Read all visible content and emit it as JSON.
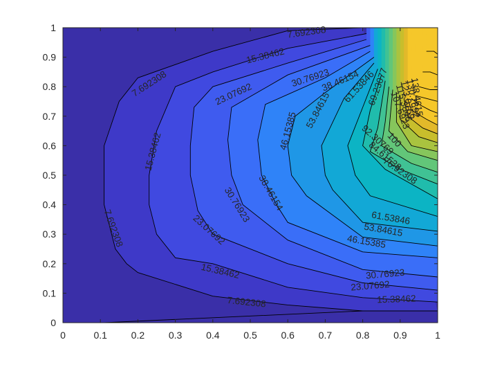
{
  "chart_data": {
    "type": "contourf",
    "title": "",
    "xlabel": "",
    "ylabel": "",
    "xlim": [
      0,
      1
    ],
    "ylim": [
      0,
      1
    ],
    "x_ticks": [
      "0",
      "0.1",
      "0.2",
      "0.3",
      "0.4",
      "0.5",
      "0.6",
      "0.7",
      "0.8",
      "0.9",
      "1"
    ],
    "y_ticks": [
      "0",
      "0.1",
      "0.2",
      "0.3",
      "0.4",
      "0.5",
      "0.6",
      "0.7",
      "0.8",
      "0.9",
      "1"
    ],
    "colormap": "parula",
    "grid": false,
    "level_step": 7.692308,
    "max_value_approx": 170,
    "fill_colors": [
      "#3a2fa8",
      "#3e39c8",
      "#4049e0",
      "#3f5bef",
      "#3a6ef8",
      "#2f83f8",
      "#1f97e6",
      "#12a8d6",
      "#0cb4c4",
      "#20bcac",
      "#40c294",
      "#62c679",
      "#86c65c",
      "#a9c33f",
      "#c8be2c",
      "#e2b92a",
      "#f5c72a"
    ],
    "level_lines": [
      {
        "level": "7.692308",
        "points": [
          [
            0.11,
            0
          ],
          [
            0.8,
            0.04
          ],
          [
            1,
            0.04
          ],
          [
            1,
            0
          ],
          [
            0.8,
            1
          ],
          [
            0.6,
            0.99
          ],
          [
            0.4,
            0.92
          ],
          [
            0.2,
            0.83
          ],
          [
            0.15,
            0.75
          ],
          [
            0.11,
            0.6
          ],
          [
            0.11,
            0.4
          ],
          [
            0.14,
            0.25
          ],
          [
            0.17,
            0.2
          ],
          [
            0.2,
            0.17
          ],
          [
            0.4,
            0.09
          ],
          [
            0.6,
            0.06
          ],
          [
            0.8,
            0.04
          ],
          [
            1,
            0.04
          ]
        ]
      },
      {
        "level": "15.38462",
        "points": [
          [
            0.81,
            0.98
          ],
          [
            0.6,
            0.93
          ],
          [
            0.4,
            0.85
          ],
          [
            0.3,
            0.8
          ],
          [
            0.25,
            0.65
          ],
          [
            0.23,
            0.5
          ],
          [
            0.23,
            0.4
          ],
          [
            0.25,
            0.3
          ],
          [
            0.3,
            0.22
          ],
          [
            0.4,
            0.2
          ],
          [
            0.6,
            0.12
          ],
          [
            0.8,
            0.085
          ],
          [
            1,
            0.07
          ]
        ]
      },
      {
        "level": "23.07692",
        "points": [
          [
            0.81,
            0.96
          ],
          [
            0.6,
            0.88
          ],
          [
            0.4,
            0.8
          ],
          [
            0.35,
            0.73
          ],
          [
            0.34,
            0.6
          ],
          [
            0.34,
            0.5
          ],
          [
            0.36,
            0.38
          ],
          [
            0.4,
            0.3
          ],
          [
            0.6,
            0.2
          ],
          [
            0.8,
            0.135
          ],
          [
            1,
            0.11
          ]
        ]
      },
      {
        "level": "30.76923",
        "points": [
          [
            0.82,
            0.94
          ],
          [
            0.6,
            0.84
          ],
          [
            0.45,
            0.73
          ],
          [
            0.44,
            0.62
          ],
          [
            0.45,
            0.5
          ],
          [
            0.48,
            0.4
          ],
          [
            0.6,
            0.28
          ],
          [
            0.8,
            0.18
          ],
          [
            1,
            0.155
          ]
        ]
      },
      {
        "level": "38.46154",
        "points": [
          [
            0.82,
            0.92
          ],
          [
            0.7,
            0.83
          ],
          [
            0.54,
            0.74
          ],
          [
            0.52,
            0.62
          ],
          [
            0.53,
            0.5
          ],
          [
            0.57,
            0.4
          ],
          [
            0.6,
            0.34
          ],
          [
            0.8,
            0.24
          ],
          [
            1,
            0.22
          ]
        ]
      },
      {
        "level": "46.15385",
        "points": [
          [
            0.83,
            0.9
          ],
          [
            0.7,
            0.78
          ],
          [
            0.62,
            0.7
          ],
          [
            0.6,
            0.6
          ],
          [
            0.61,
            0.5
          ],
          [
            0.65,
            0.43
          ],
          [
            0.8,
            0.29
          ],
          [
            1,
            0.26
          ]
        ]
      },
      {
        "level": "53.84615",
        "points": [
          [
            0.83,
            0.88
          ],
          [
            0.75,
            0.76
          ],
          [
            0.69,
            0.6
          ],
          [
            0.7,
            0.5
          ],
          [
            0.72,
            0.45
          ],
          [
            0.8,
            0.34
          ],
          [
            1,
            0.31
          ]
        ]
      },
      {
        "level": "61.53846",
        "points": [
          [
            0.84,
            0.86
          ],
          [
            0.8,
            0.73
          ],
          [
            0.76,
            0.6
          ],
          [
            0.78,
            0.5
          ],
          [
            0.82,
            0.43
          ],
          [
            1,
            0.36
          ]
        ]
      },
      {
        "level": "69.23077",
        "points": [
          [
            0.85,
            0.84
          ],
          [
            0.82,
            0.72
          ],
          [
            0.8,
            0.6
          ],
          [
            0.86,
            0.52
          ],
          [
            1,
            0.42
          ]
        ]
      },
      {
        "level": "76.92308",
        "points": [
          [
            0.86,
            0.82
          ],
          [
            0.84,
            0.66
          ],
          [
            0.82,
            0.58
          ],
          [
            0.9,
            0.52
          ],
          [
            1,
            0.47
          ]
        ]
      },
      {
        "level": "84.61538",
        "points": [
          [
            0.87,
            0.8
          ],
          [
            0.86,
            0.68
          ],
          [
            0.85,
            0.6
          ],
          [
            0.93,
            0.54
          ],
          [
            1,
            0.51
          ]
        ]
      },
      {
        "level": "92.30769",
        "points": [
          [
            0.88,
            0.79
          ],
          [
            0.87,
            0.65
          ],
          [
            0.92,
            0.58
          ],
          [
            1,
            0.55
          ]
        ]
      },
      {
        "level": "100",
        "points": [
          [
            0.89,
            0.78
          ],
          [
            0.89,
            0.68
          ],
          [
            0.93,
            0.6
          ],
          [
            1,
            0.58
          ]
        ]
      },
      {
        "level": "107.6923",
        "points": [
          [
            0.9,
            0.77
          ],
          [
            0.9,
            0.69
          ],
          [
            0.95,
            0.63
          ],
          [
            1,
            0.61
          ]
        ]
      },
      {
        "level": "115.3846",
        "points": [
          [
            0.91,
            0.76
          ],
          [
            0.92,
            0.7
          ],
          [
            0.96,
            0.66
          ],
          [
            1,
            0.64
          ]
        ]
      },
      {
        "level": "123.0769",
        "points": [
          [
            0.92,
            0.76
          ],
          [
            0.93,
            0.72
          ],
          [
            0.97,
            0.69
          ],
          [
            1,
            0.67
          ]
        ]
      },
      {
        "level": "130.7692",
        "points": [
          [
            0.93,
            0.76
          ],
          [
            0.95,
            0.74
          ],
          [
            0.98,
            0.72
          ],
          [
            1,
            0.71
          ]
        ]
      },
      {
        "level": "138.4615",
        "points": [
          [
            0.94,
            0.77
          ],
          [
            0.97,
            0.76
          ],
          [
            1,
            0.75
          ]
        ]
      },
      {
        "level": "146.1538",
        "points": [
          [
            0.95,
            0.8
          ],
          [
            0.98,
            0.79
          ],
          [
            1,
            0.79
          ]
        ]
      },
      {
        "level": "153.8462",
        "points": [
          [
            0.96,
            0.85
          ],
          [
            0.98,
            0.85
          ],
          [
            1,
            0.84
          ]
        ]
      },
      {
        "level": "161.5385",
        "points": [
          [
            0.97,
            0.92
          ],
          [
            0.99,
            0.92
          ],
          [
            1,
            0.91
          ]
        ]
      }
    ],
    "contour_labels": [
      {
        "text": "7.692308",
        "x": 0.65,
        "y": 0.985,
        "angle": -8
      },
      {
        "text": "15.38462",
        "x": 0.54,
        "y": 0.905,
        "angle": -14
      },
      {
        "text": "7.692308",
        "x": 0.23,
        "y": 0.81,
        "angle": -33
      },
      {
        "text": "30.76923",
        "x": 0.66,
        "y": 0.83,
        "angle": -18
      },
      {
        "text": "23.07692",
        "x": 0.455,
        "y": 0.775,
        "angle": -25
      },
      {
        "text": "38.46154",
        "x": 0.74,
        "y": 0.82,
        "angle": -23
      },
      {
        "text": "61.53846",
        "x": 0.79,
        "y": 0.8,
        "angle": -47
      },
      {
        "text": "69.23077",
        "x": 0.84,
        "y": 0.8,
        "angle": -70
      },
      {
        "text": "53.84615",
        "x": 0.68,
        "y": 0.72,
        "angle": -62
      },
      {
        "text": "46.15385",
        "x": 0.6,
        "y": 0.65,
        "angle": -75
      },
      {
        "text": "15.38462",
        "x": 0.24,
        "y": 0.58,
        "angle": -75
      },
      {
        "text": "38.46154",
        "x": 0.555,
        "y": 0.44,
        "angle": 60
      },
      {
        "text": "30.76923",
        "x": 0.465,
        "y": 0.4,
        "angle": 58
      },
      {
        "text": "23.07692",
        "x": 0.39,
        "y": 0.315,
        "angle": 42
      },
      {
        "text": "7.692308",
        "x": 0.135,
        "y": 0.32,
        "angle": 70
      },
      {
        "text": "15.38462",
        "x": 0.42,
        "y": 0.175,
        "angle": 13
      },
      {
        "text": "7.692308",
        "x": 0.49,
        "y": 0.07,
        "angle": 6
      },
      {
        "text": "30.76923",
        "x": 0.86,
        "y": 0.165,
        "angle": -5
      },
      {
        "text": "23.07692",
        "x": 0.82,
        "y": 0.125,
        "angle": -5
      },
      {
        "text": "15.38462",
        "x": 0.89,
        "y": 0.08,
        "angle": -2
      },
      {
        "text": "61.53846",
        "x": 0.875,
        "y": 0.355,
        "angle": 10
      },
      {
        "text": "53.84615",
        "x": 0.855,
        "y": 0.315,
        "angle": 10
      },
      {
        "text": "46.15385",
        "x": 0.81,
        "y": 0.275,
        "angle": 10
      },
      {
        "text": "76.92308",
        "x": 0.9,
        "y": 0.515,
        "angle": 35
      },
      {
        "text": "84.61538",
        "x": 0.86,
        "y": 0.565,
        "angle": 40
      },
      {
        "text": "92.30769",
        "x": 0.84,
        "y": 0.62,
        "angle": 42
      },
      {
        "text": "100",
        "x": 0.885,
        "y": 0.62,
        "angle": 48
      },
      {
        "text": "107.6923",
        "x": 0.9,
        "y": 0.72,
        "angle": 70
      },
      {
        "text": "115.3846",
        "x": 0.91,
        "y": 0.745,
        "angle": 75
      },
      {
        "text": "123.0769",
        "x": 0.92,
        "y": 0.755,
        "angle": 78
      },
      {
        "text": "130.7692",
        "x": 0.935,
        "y": 0.76,
        "angle": 80
      },
      {
        "text": "138.4615",
        "x": 0.945,
        "y": 0.765,
        "angle": 82
      }
    ]
  }
}
